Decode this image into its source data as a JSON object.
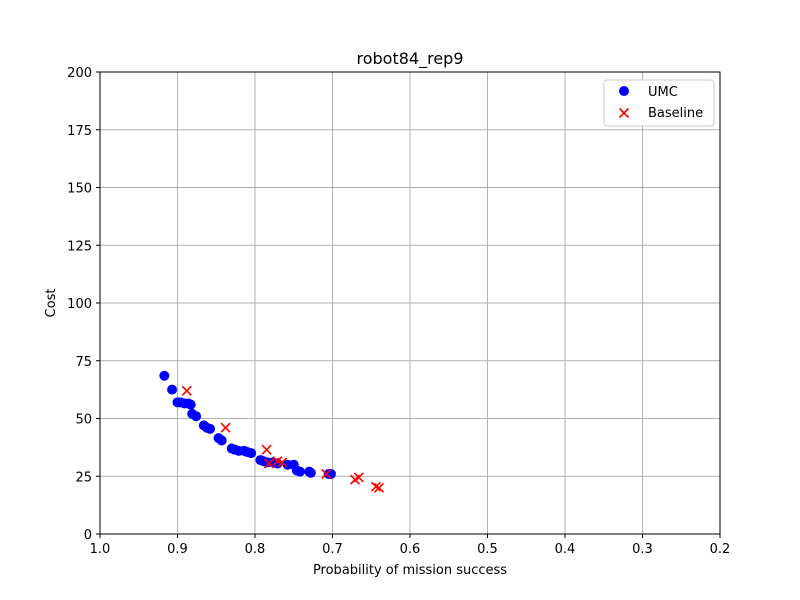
{
  "chart_data": {
    "type": "scatter",
    "title": "robot84_rep9",
    "xlabel": "Probability of mission success",
    "ylabel": "Cost",
    "xlim": [
      1.0,
      0.2
    ],
    "ylim": [
      0,
      200
    ],
    "x_inverted": true,
    "xticks": [
      "1.0",
      "0.9",
      "0.8",
      "0.7",
      "0.6",
      "0.5",
      "0.4",
      "0.3",
      "0.2"
    ],
    "yticks": [
      "0",
      "25",
      "50",
      "75",
      "100",
      "125",
      "150",
      "175",
      "200"
    ],
    "grid": true,
    "legend_position": "top-right",
    "series": [
      {
        "name": "UMC",
        "marker": "circle",
        "color": "#0000ff",
        "points": [
          [
            0.917,
            68.5
          ],
          [
            0.907,
            62.5
          ],
          [
            0.9,
            57.0
          ],
          [
            0.896,
            57.0
          ],
          [
            0.891,
            56.5
          ],
          [
            0.886,
            56.5
          ],
          [
            0.883,
            56.0
          ],
          [
            0.881,
            52.0
          ],
          [
            0.876,
            51.0
          ],
          [
            0.866,
            47.0
          ],
          [
            0.862,
            46.0
          ],
          [
            0.858,
            45.5
          ],
          [
            0.847,
            41.5
          ],
          [
            0.843,
            40.5
          ],
          [
            0.83,
            37.0
          ],
          [
            0.826,
            36.5
          ],
          [
            0.821,
            36.0
          ],
          [
            0.814,
            36.0
          ],
          [
            0.81,
            35.5
          ],
          [
            0.805,
            35.0
          ],
          [
            0.793,
            32.0
          ],
          [
            0.789,
            31.5
          ],
          [
            0.784,
            31.0
          ],
          [
            0.777,
            31.0
          ],
          [
            0.771,
            30.5
          ],
          [
            0.758,
            30.0
          ],
          [
            0.75,
            30.0
          ],
          [
            0.746,
            27.5
          ],
          [
            0.742,
            27.0
          ],
          [
            0.73,
            27.0
          ],
          [
            0.728,
            26.5
          ],
          [
            0.705,
            26.0
          ],
          [
            0.702,
            26.0
          ]
        ]
      },
      {
        "name": "Baseline",
        "marker": "x",
        "color": "#ff0000",
        "points": [
          [
            0.888,
            62.0
          ],
          [
            0.838,
            46.0
          ],
          [
            0.785,
            36.5
          ],
          [
            0.782,
            30.5
          ],
          [
            0.771,
            31.5
          ],
          [
            0.765,
            31.0
          ],
          [
            0.708,
            26.0
          ],
          [
            0.671,
            23.5
          ],
          [
            0.666,
            24.5
          ],
          [
            0.644,
            20.5
          ],
          [
            0.64,
            20.0
          ]
        ]
      }
    ]
  }
}
